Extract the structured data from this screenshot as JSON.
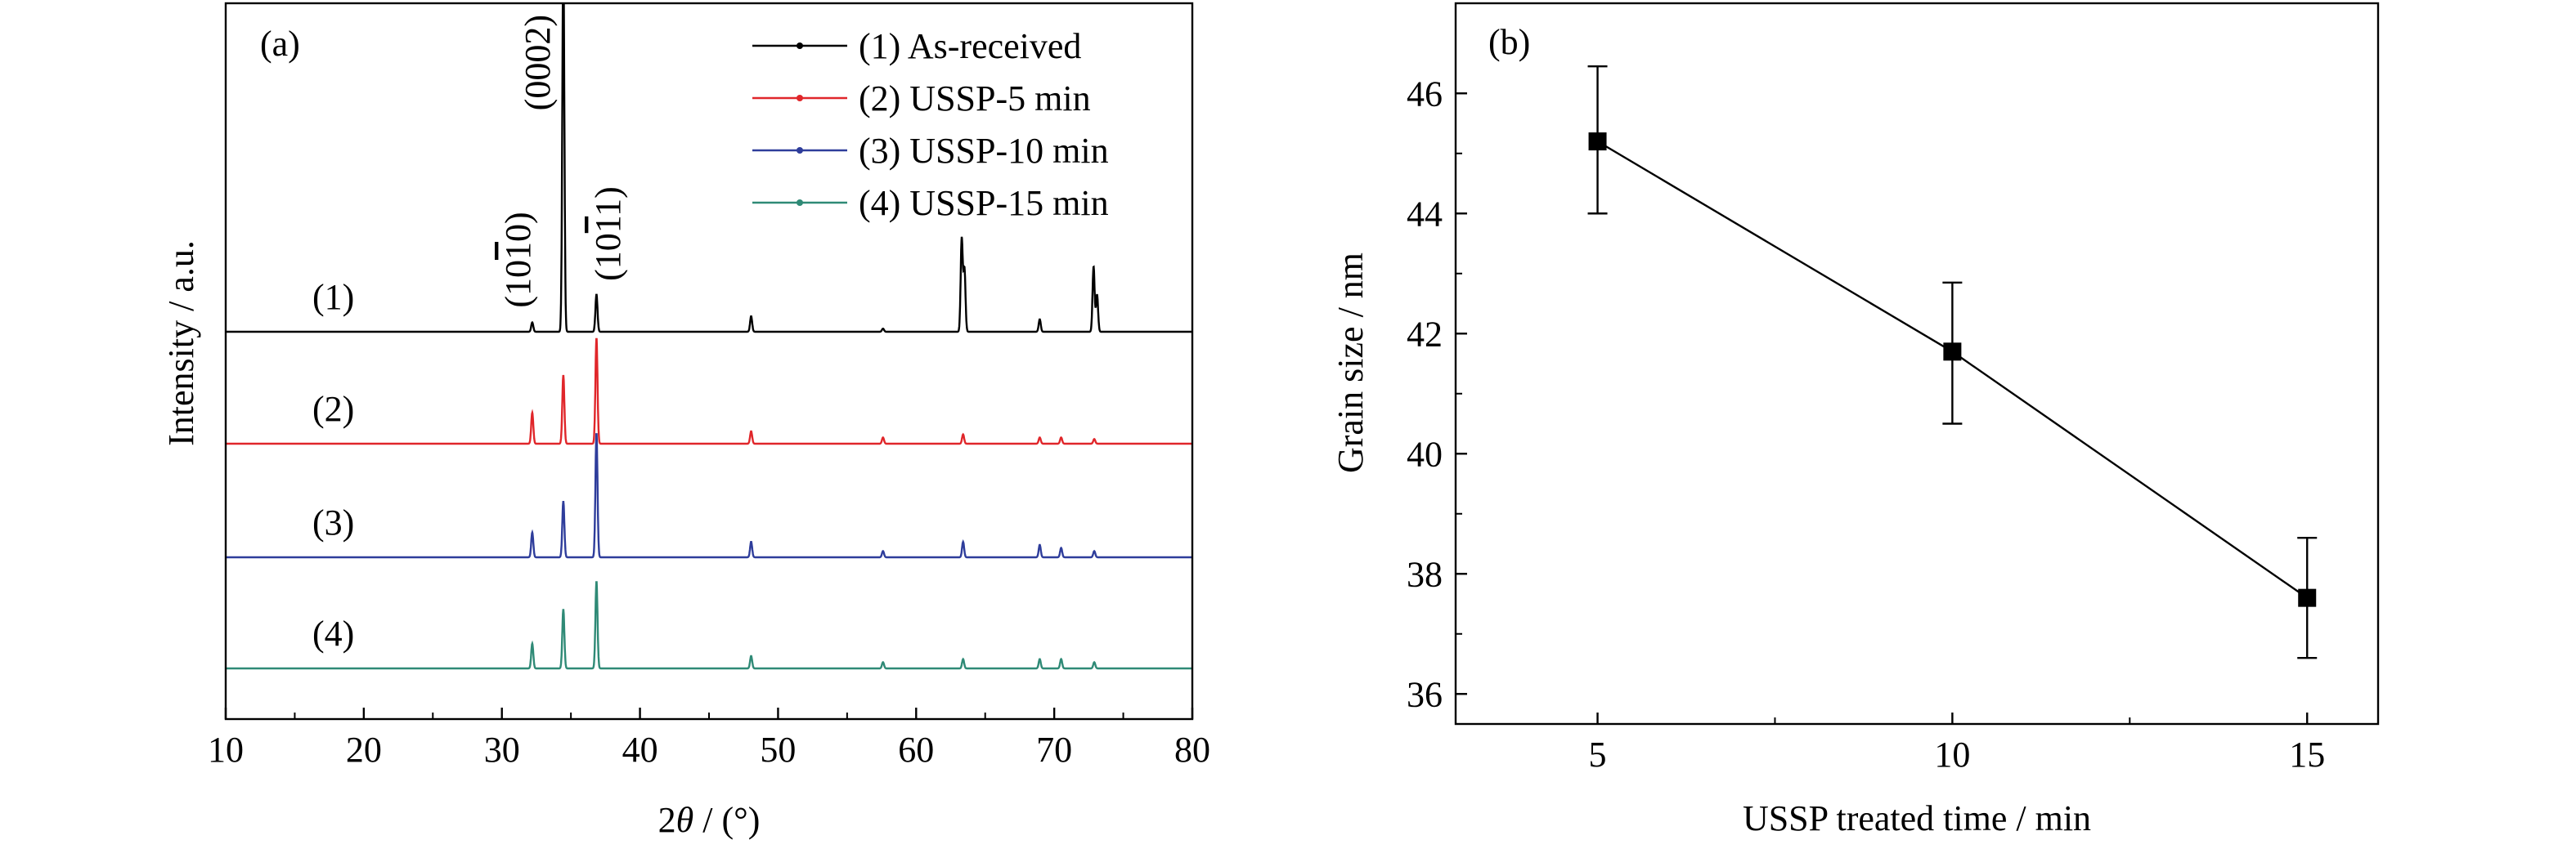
{
  "chart_data": [
    {
      "panel": "(a)",
      "type": "line",
      "xlabel_prefix": "2",
      "xlabel_var": "θ",
      "xlabel_suffix": " / (°)",
      "ylabel": "Intensity / a.u.",
      "xlim": [
        10,
        80
      ],
      "x_ticks": [
        "10",
        "20",
        "30",
        "40",
        "50",
        "60",
        "70",
        "80"
      ],
      "y_ticks_shown": false,
      "legend_position": "top-right",
      "peak_labels": [
        {
          "text": "(0002)",
          "x": 34.4
        },
        {
          "text": "(10",
          "bar": "1",
          "rest": "0)",
          "x": 32.0
        },
        {
          "text": "(10",
          "bar": "1",
          "rest": "1)",
          "x": 36.6
        }
      ],
      "series": [
        {
          "name": "(1) As-received",
          "curve_label": "(1)",
          "color": "#000000",
          "peaks": [
            [
              32.2,
              0.03
            ],
            [
              34.45,
              1.2
            ],
            [
              36.85,
              0.12
            ],
            [
              48.05,
              0.05
            ],
            [
              57.6,
              0.01
            ],
            [
              63.3,
              0.3
            ],
            [
              63.5,
              0.2
            ],
            [
              68.95,
              0.04
            ],
            [
              72.85,
              0.21
            ],
            [
              73.1,
              0.12
            ]
          ]
        },
        {
          "name": "(2) USSP-5 min",
          "curve_label": "(2)",
          "color": "#e0262a",
          "peaks": [
            [
              32.2,
              0.1
            ],
            [
              34.45,
              0.22
            ],
            [
              36.85,
              0.34
            ],
            [
              48.05,
              0.04
            ],
            [
              57.6,
              0.02
            ],
            [
              63.4,
              0.03
            ],
            [
              68.95,
              0.02
            ],
            [
              70.5,
              0.02
            ],
            [
              72.9,
              0.015
            ]
          ]
        },
        {
          "name": "(3) USSP-10 min",
          "curve_label": "(3)",
          "color": "#2e3d9b",
          "peaks": [
            [
              32.2,
              0.08
            ],
            [
              34.45,
              0.18
            ],
            [
              36.85,
              0.4
            ],
            [
              48.05,
              0.05
            ],
            [
              57.6,
              0.02
            ],
            [
              63.4,
              0.05
            ],
            [
              68.95,
              0.04
            ],
            [
              70.5,
              0.03
            ],
            [
              72.9,
              0.02
            ]
          ]
        },
        {
          "name": "(4) USSP-15 min",
          "curve_label": "(4)",
          "color": "#2f8a76",
          "peaks": [
            [
              32.2,
              0.08
            ],
            [
              34.45,
              0.19
            ],
            [
              36.85,
              0.28
            ],
            [
              48.05,
              0.04
            ],
            [
              57.6,
              0.02
            ],
            [
              63.4,
              0.03
            ],
            [
              68.95,
              0.03
            ],
            [
              70.5,
              0.03
            ],
            [
              72.9,
              0.02
            ]
          ]
        }
      ]
    },
    {
      "panel": "(b)",
      "type": "line",
      "xlabel": "USSP treated time / min",
      "ylabel": "Grain size / nm",
      "xlim": [
        3.0,
        16.0
      ],
      "ylim": [
        35.5,
        47.5
      ],
      "x_ticks": [
        5,
        10,
        15
      ],
      "y_ticks": [
        36,
        38,
        40,
        42,
        44,
        46
      ],
      "marker": "square",
      "color": "#000000",
      "x": [
        5,
        10,
        15
      ],
      "y": [
        45.2,
        41.7,
        37.6
      ],
      "err_low": [
        44.0,
        40.5,
        36.6
      ],
      "err_high": [
        46.45,
        42.85,
        38.6
      ]
    }
  ]
}
